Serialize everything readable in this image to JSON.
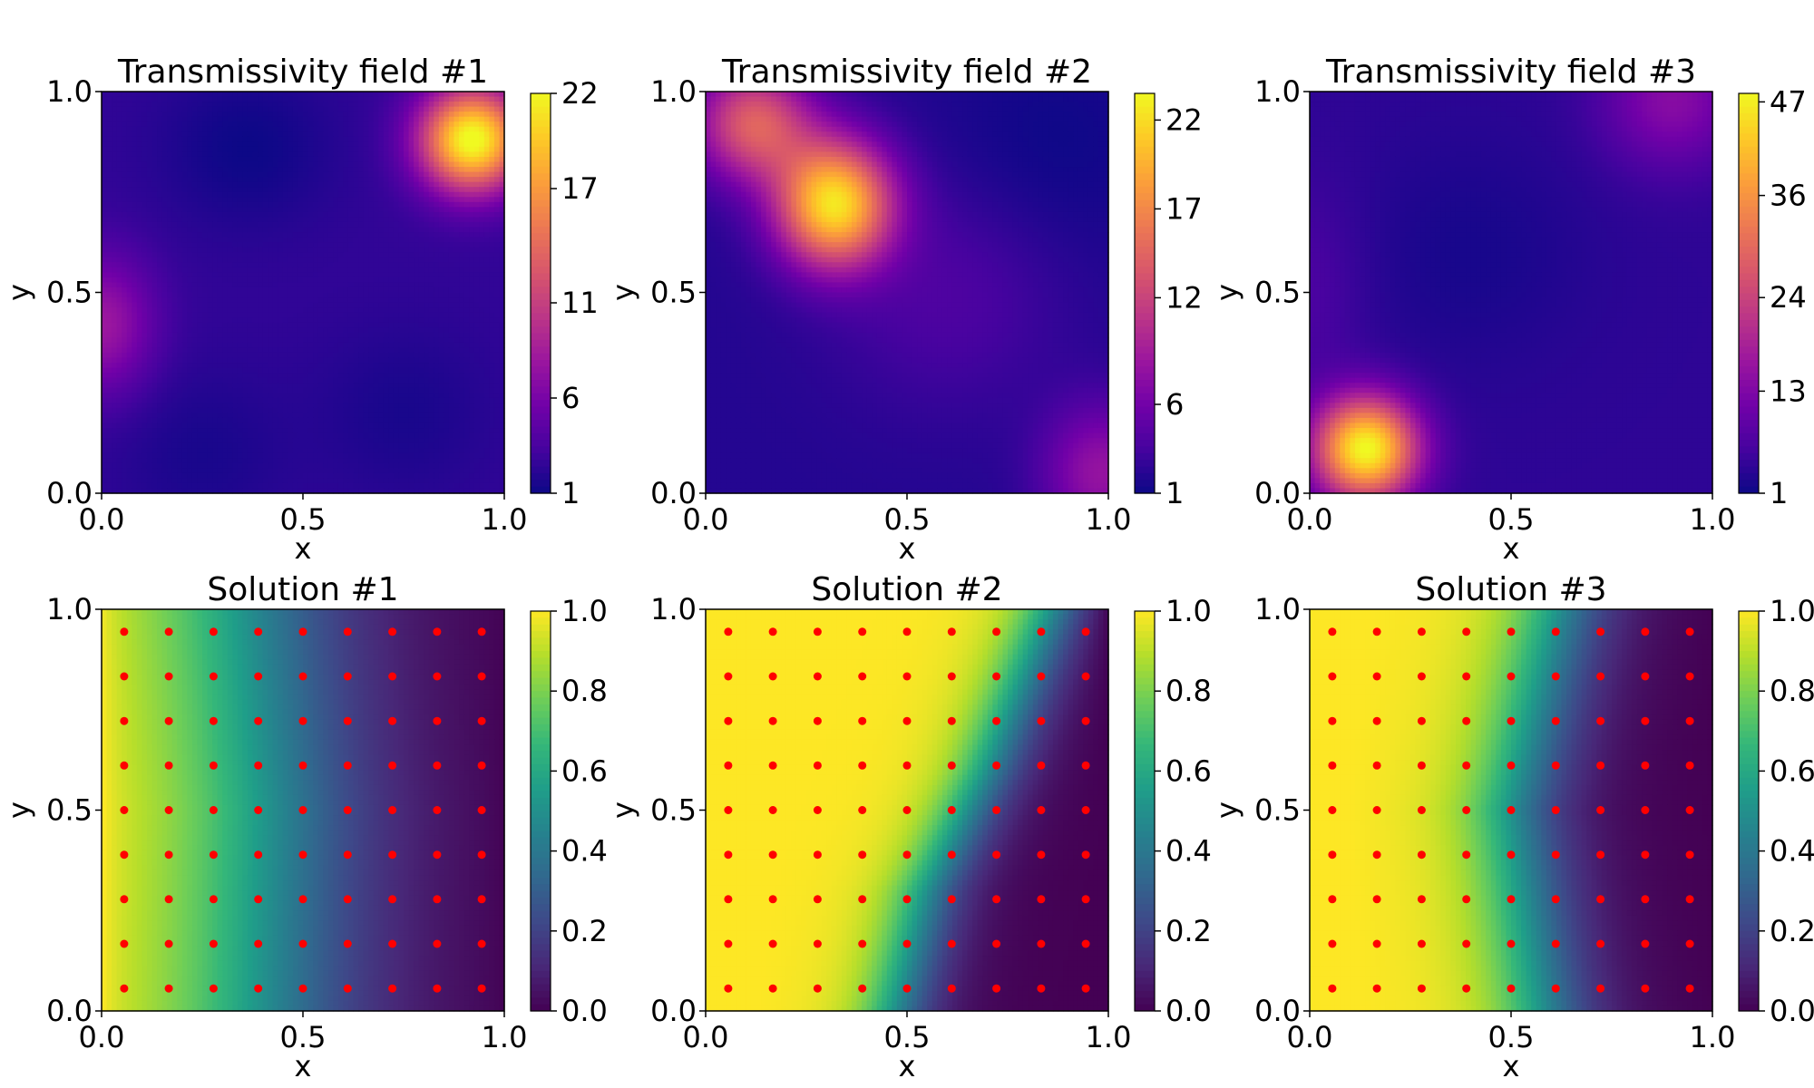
{
  "figure": {
    "colormaps": {
      "plasma": [
        "#0d0887",
        "#46039f",
        "#7201a8",
        "#9c179e",
        "#bd3786",
        "#d8576b",
        "#ed7953",
        "#fb9f3a",
        "#fdca26",
        "#f0f921"
      ],
      "viridis": [
        "#440154",
        "#482878",
        "#3e4989",
        "#31688e",
        "#26828e",
        "#1f9e89",
        "#35b779",
        "#6ece58",
        "#b5de2b",
        "#fde725"
      ]
    },
    "marker_color": "#ff0000"
  },
  "chart_data": [
    {
      "type": "heatmap",
      "title": "Transmissivity field #1",
      "xlabel": "x",
      "ylabel": "y",
      "xlim": [
        0,
        1
      ],
      "ylim": [
        0,
        1
      ],
      "xticks": [
        "0.0",
        "0.5",
        "1.0"
      ],
      "yticks": [
        "0.0",
        "0.5",
        "1.0"
      ],
      "colormap": "plasma",
      "colorbar": {
        "min": 1,
        "max": 22,
        "ticks": [
          1,
          6,
          11,
          17,
          22
        ],
        "tick_labels": [
          "1",
          "6",
          "11",
          "17",
          "22"
        ]
      },
      "field": {
        "base": 2.5,
        "features": [
          {
            "x": 0.92,
            "y": 0.88,
            "amplitude": 20,
            "sx": 0.09,
            "sy": 0.09
          },
          {
            "x": 0.0,
            "y": 0.42,
            "amplitude": 5.5,
            "sx": 0.09,
            "sy": 0.12
          },
          {
            "x": 0.36,
            "y": 0.86,
            "amplitude": -1.5,
            "sx": 0.15,
            "sy": 0.14
          },
          {
            "x": 0.75,
            "y": 0.2,
            "amplitude": -1.0,
            "sx": 0.15,
            "sy": 0.15
          },
          {
            "x": 0.25,
            "y": 0.1,
            "amplitude": -1.0,
            "sx": 0.15,
            "sy": 0.15
          }
        ]
      }
    },
    {
      "type": "heatmap",
      "title": "Transmissivity field #2",
      "xlabel": "x",
      "ylabel": "y",
      "xlim": [
        0,
        1
      ],
      "ylim": [
        0,
        1
      ],
      "xticks": [
        "0.0",
        "0.5",
        "1.0"
      ],
      "yticks": [
        "0.0",
        "0.5",
        "1.0"
      ],
      "colormap": "plasma",
      "colorbar": {
        "min": 1,
        "max": 23.5,
        "ticks": [
          1,
          6,
          12,
          17,
          22
        ],
        "tick_labels": [
          "1",
          "6",
          "12",
          "17",
          "22"
        ]
      },
      "field": {
        "base": 2.0,
        "features": [
          {
            "x": 0.32,
            "y": 0.72,
            "amplitude": 20,
            "sx": 0.1,
            "sy": 0.11
          },
          {
            "x": 0.12,
            "y": 0.92,
            "amplitude": 12,
            "sx": 0.1,
            "sy": 0.1
          },
          {
            "x": 0.98,
            "y": 0.05,
            "amplitude": 6,
            "sx": 0.1,
            "sy": 0.12
          },
          {
            "x": 0.6,
            "y": 0.5,
            "amplitude": 2,
            "sx": 0.2,
            "sy": 0.2
          },
          {
            "x": 0.85,
            "y": 0.85,
            "amplitude": -1.0,
            "sx": 0.2,
            "sy": 0.2
          }
        ]
      }
    },
    {
      "type": "heatmap",
      "title": "Transmissivity field #3",
      "xlabel": "x",
      "ylabel": "y",
      "xlim": [
        0,
        1
      ],
      "ylim": [
        0,
        1
      ],
      "xticks": [
        "0.0",
        "0.5",
        "1.0"
      ],
      "yticks": [
        "0.0",
        "0.5",
        "1.0"
      ],
      "colormap": "plasma",
      "colorbar": {
        "min": 1,
        "max": 48,
        "ticks": [
          1,
          13,
          24,
          36,
          47
        ],
        "tick_labels": [
          "1",
          "13",
          "24",
          "36",
          "47"
        ]
      },
      "field": {
        "base": 4.0,
        "features": [
          {
            "x": 0.14,
            "y": 0.11,
            "amplitude": 44,
            "sx": 0.09,
            "sy": 0.09
          },
          {
            "x": 0.9,
            "y": 0.98,
            "amplitude": 10,
            "sx": 0.12,
            "sy": 0.12
          },
          {
            "x": 0.4,
            "y": 0.6,
            "amplitude": -2.0,
            "sx": 0.2,
            "sy": 0.2
          },
          {
            "x": 0.0,
            "y": 0.5,
            "amplitude": 3,
            "sx": 0.1,
            "sy": 0.2
          }
        ]
      }
    },
    {
      "type": "heatmap",
      "title": "Solution #1",
      "xlabel": "x",
      "ylabel": "y",
      "xlim": [
        0,
        1
      ],
      "ylim": [
        0,
        1
      ],
      "xticks": [
        "0.0",
        "0.5",
        "1.0"
      ],
      "yticks": [
        "0.0",
        "0.5",
        "1.0"
      ],
      "colormap": "viridis",
      "colorbar": {
        "min": 0,
        "max": 1,
        "ticks": [
          0,
          0.2,
          0.4,
          0.6,
          0.8,
          1.0
        ],
        "tick_labels": [
          "0.0",
          "0.2",
          "0.4",
          "0.6",
          "0.8",
          "1.0"
        ]
      },
      "solution": {
        "front": [
          [
            0.0,
            0.4
          ],
          [
            0.5,
            0.42
          ],
          [
            1.0,
            0.36
          ]
        ],
        "width": 0.16,
        "near_bias": 0.08
      },
      "sensors": {
        "x": [
          0.056,
          0.167,
          0.278,
          0.389,
          0.5,
          0.611,
          0.722,
          0.833,
          0.944
        ],
        "y": [
          0.056,
          0.167,
          0.278,
          0.389,
          0.5,
          0.611,
          0.722,
          0.833,
          0.944
        ]
      }
    },
    {
      "type": "heatmap",
      "title": "Solution #2",
      "xlabel": "x",
      "ylabel": "y",
      "xlim": [
        0,
        1
      ],
      "ylim": [
        0,
        1
      ],
      "xticks": [
        "0.0",
        "0.5",
        "1.0"
      ],
      "yticks": [
        "0.0",
        "0.5",
        "1.0"
      ],
      "colormap": "viridis",
      "colorbar": {
        "min": 0,
        "max": 1,
        "ticks": [
          0,
          0.2,
          0.4,
          0.6,
          0.8,
          1.0
        ],
        "tick_labels": [
          "0.0",
          "0.2",
          "0.4",
          "0.6",
          "0.8",
          "1.0"
        ]
      },
      "solution": {
        "front": [
          [
            0.0,
            0.47
          ],
          [
            0.3,
            0.55
          ],
          [
            0.6,
            0.7
          ],
          [
            1.0,
            0.86
          ]
        ],
        "width": 0.06,
        "near_bias": 0.1
      },
      "sensors": {
        "x": [
          0.056,
          0.167,
          0.278,
          0.389,
          0.5,
          0.611,
          0.722,
          0.833,
          0.944
        ],
        "y": [
          0.056,
          0.167,
          0.278,
          0.389,
          0.5,
          0.611,
          0.722,
          0.833,
          0.944
        ]
      }
    },
    {
      "type": "heatmap",
      "title": "Solution #3",
      "xlabel": "x",
      "ylabel": "y",
      "xlim": [
        0,
        1
      ],
      "ylim": [
        0,
        1
      ],
      "xticks": [
        "0.0",
        "0.5",
        "1.0"
      ],
      "yticks": [
        "0.0",
        "0.5",
        "1.0"
      ],
      "colormap": "viridis",
      "colorbar": {
        "min": 0,
        "max": 1,
        "ticks": [
          0,
          0.2,
          0.4,
          0.6,
          0.8,
          1.0
        ],
        "tick_labels": [
          "0.0",
          "0.2",
          "0.4",
          "0.6",
          "0.8",
          "1.0"
        ]
      },
      "solution": {
        "front": [
          [
            0.0,
            0.58
          ],
          [
            0.5,
            0.5
          ],
          [
            1.0,
            0.62
          ]
        ],
        "width": 0.08,
        "near_bias": 0.08
      },
      "sensors": {
        "x": [
          0.056,
          0.167,
          0.278,
          0.389,
          0.5,
          0.611,
          0.722,
          0.833,
          0.944
        ],
        "y": [
          0.056,
          0.167,
          0.278,
          0.389,
          0.5,
          0.611,
          0.722,
          0.833,
          0.944
        ]
      }
    }
  ]
}
